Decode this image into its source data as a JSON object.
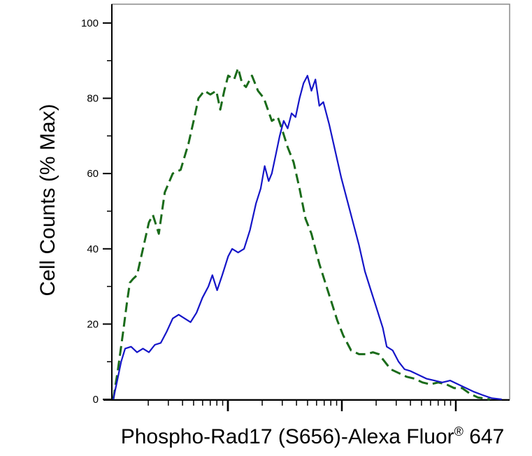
{
  "chart_data": {
    "type": "area",
    "title": "",
    "xlabel": "Phospho-Rad17 (S656)-Alexa Fluor",
    "xlabel_superscript": "®",
    "xlabel_suffix": " 647",
    "ylabel": "Cell Counts (% Max)",
    "xscale": "log",
    "xlim": [
      0,
      1
    ],
    "ylim": [
      0,
      105
    ],
    "yticks": [
      0,
      20,
      40,
      60,
      80,
      100
    ],
    "ytick_labels": [
      "0",
      "20",
      "40",
      "60",
      "80",
      "100"
    ],
    "grid": false,
    "legend": "none",
    "series": [
      {
        "style": "dashed",
        "color": "#1a6b1a",
        "points": [
          [
            0.0,
            0
          ],
          [
            0.012,
            8
          ],
          [
            0.025,
            18
          ],
          [
            0.035,
            26
          ],
          [
            0.042,
            31
          ],
          [
            0.05,
            32
          ],
          [
            0.06,
            33
          ],
          [
            0.075,
            40
          ],
          [
            0.09,
            47
          ],
          [
            0.1,
            49
          ],
          [
            0.115,
            44
          ],
          [
            0.13,
            55
          ],
          [
            0.15,
            60
          ],
          [
            0.17,
            61
          ],
          [
            0.19,
            68
          ],
          [
            0.205,
            75
          ],
          [
            0.215,
            80
          ],
          [
            0.23,
            82
          ],
          [
            0.245,
            81
          ],
          [
            0.26,
            82
          ],
          [
            0.27,
            77
          ],
          [
            0.28,
            82
          ],
          [
            0.29,
            86
          ],
          [
            0.305,
            85
          ],
          [
            0.315,
            88
          ],
          [
            0.325,
            84
          ],
          [
            0.335,
            83
          ],
          [
            0.35,
            86
          ],
          [
            0.365,
            82
          ],
          [
            0.38,
            80
          ],
          [
            0.4,
            74
          ],
          [
            0.415,
            75
          ],
          [
            0.425,
            72
          ],
          [
            0.44,
            67
          ],
          [
            0.455,
            63
          ],
          [
            0.47,
            56
          ],
          [
            0.485,
            48
          ],
          [
            0.5,
            44
          ],
          [
            0.52,
            36
          ],
          [
            0.535,
            31
          ],
          [
            0.55,
            26
          ],
          [
            0.565,
            21
          ],
          [
            0.58,
            17
          ],
          [
            0.6,
            13
          ],
          [
            0.62,
            12
          ],
          [
            0.64,
            12
          ],
          [
            0.655,
            12.5
          ],
          [
            0.67,
            12
          ],
          [
            0.685,
            10
          ],
          [
            0.7,
            8
          ],
          [
            0.72,
            7
          ],
          [
            0.74,
            6
          ],
          [
            0.76,
            5.5
          ],
          [
            0.78,
            4.5
          ],
          [
            0.8,
            4
          ],
          [
            0.82,
            4.5
          ],
          [
            0.84,
            4
          ],
          [
            0.86,
            3
          ],
          [
            0.88,
            3
          ],
          [
            0.9,
            1.5
          ],
          [
            0.92,
            0.5
          ],
          [
            0.95,
            0
          ]
        ]
      },
      {
        "style": "solid",
        "color": "#1515c8",
        "points": [
          [
            0.0,
            0
          ],
          [
            0.01,
            5
          ],
          [
            0.02,
            10
          ],
          [
            0.03,
            13.5
          ],
          [
            0.045,
            14
          ],
          [
            0.06,
            12.5
          ],
          [
            0.075,
            13.5
          ],
          [
            0.09,
            12.5
          ],
          [
            0.105,
            14.5
          ],
          [
            0.12,
            15
          ],
          [
            0.135,
            18
          ],
          [
            0.15,
            21.5
          ],
          [
            0.165,
            22.5
          ],
          [
            0.18,
            21.5
          ],
          [
            0.195,
            20.5
          ],
          [
            0.21,
            23
          ],
          [
            0.225,
            27
          ],
          [
            0.24,
            30
          ],
          [
            0.25,
            33
          ],
          [
            0.262,
            29
          ],
          [
            0.275,
            33
          ],
          [
            0.29,
            38
          ],
          [
            0.3,
            40
          ],
          [
            0.315,
            39
          ],
          [
            0.33,
            40
          ],
          [
            0.345,
            45
          ],
          [
            0.36,
            52
          ],
          [
            0.372,
            56
          ],
          [
            0.382,
            62
          ],
          [
            0.392,
            58
          ],
          [
            0.4,
            60
          ],
          [
            0.41,
            65
          ],
          [
            0.42,
            70
          ],
          [
            0.43,
            74
          ],
          [
            0.44,
            72
          ],
          [
            0.45,
            76
          ],
          [
            0.46,
            75
          ],
          [
            0.47,
            80
          ],
          [
            0.48,
            84
          ],
          [
            0.49,
            86
          ],
          [
            0.5,
            82
          ],
          [
            0.51,
            85
          ],
          [
            0.52,
            78
          ],
          [
            0.53,
            79
          ],
          [
            0.545,
            73
          ],
          [
            0.56,
            66
          ],
          [
            0.575,
            59
          ],
          [
            0.59,
            53
          ],
          [
            0.605,
            47
          ],
          [
            0.62,
            41
          ],
          [
            0.635,
            34
          ],
          [
            0.65,
            29
          ],
          [
            0.665,
            24
          ],
          [
            0.68,
            19
          ],
          [
            0.69,
            14
          ],
          [
            0.705,
            13
          ],
          [
            0.72,
            10
          ],
          [
            0.735,
            8
          ],
          [
            0.75,
            7.5
          ],
          [
            0.77,
            6.5
          ],
          [
            0.79,
            5.5
          ],
          [
            0.81,
            5
          ],
          [
            0.83,
            4.5
          ],
          [
            0.85,
            5
          ],
          [
            0.87,
            4
          ],
          [
            0.89,
            3
          ],
          [
            0.91,
            2
          ],
          [
            0.93,
            1.2
          ],
          [
            0.955,
            0.3
          ],
          [
            0.98,
            0
          ]
        ]
      }
    ]
  }
}
